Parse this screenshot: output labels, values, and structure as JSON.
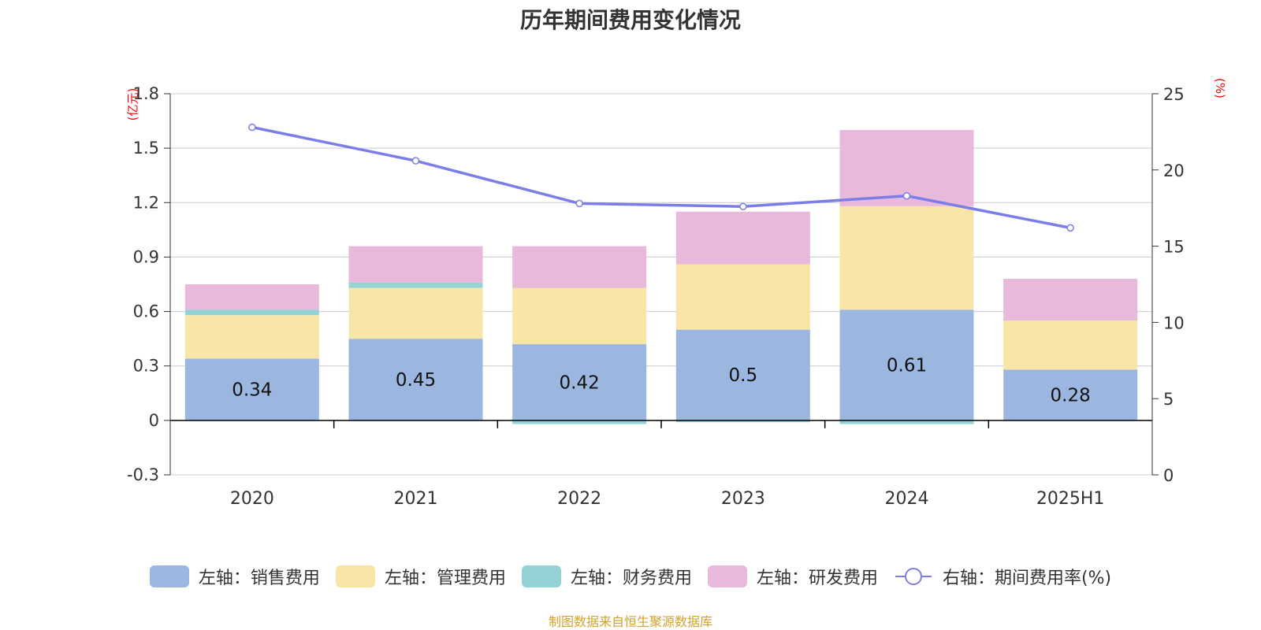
{
  "chart_data": {
    "type": "bar",
    "title": "历年期间费用变化情况",
    "categories": [
      "2020",
      "2021",
      "2022",
      "2023",
      "2024",
      "2025H1"
    ],
    "left_axis": {
      "unit": "(亿元)",
      "ticks": [
        "-0.3",
        "0",
        "0.3",
        "0.6",
        "0.9",
        "1.2",
        "1.5",
        "1.8"
      ],
      "ylim": [
        -0.3,
        1.8
      ]
    },
    "right_axis": {
      "unit": "(%)",
      "ticks": [
        "0",
        "5",
        "10",
        "15",
        "20",
        "25"
      ],
      "ylim": [
        0,
        25
      ]
    },
    "series": [
      {
        "name": "左轴：销售费用",
        "type": "bar",
        "axis": "left",
        "color": "#9bb7e0",
        "values": [
          0.34,
          0.45,
          0.42,
          0.5,
          0.61,
          0.28
        ],
        "labels": [
          "0.34",
          "0.45",
          "0.42",
          "0.5",
          "0.61",
          "0.28"
        ]
      },
      {
        "name": "左轴：管理费用",
        "type": "bar",
        "axis": "left",
        "color": "#f8e6a8",
        "values": [
          0.24,
          0.28,
          0.31,
          0.36,
          0.57,
          0.27
        ]
      },
      {
        "name": "左轴：财务费用",
        "type": "bar",
        "axis": "left",
        "color": "#94d3d5",
        "values": [
          0.03,
          0.03,
          -0.02,
          -0.01,
          -0.02,
          0.0
        ]
      },
      {
        "name": "左轴：研发费用",
        "type": "bar",
        "axis": "left",
        "color": "#e8b9da",
        "values": [
          0.14,
          0.2,
          0.23,
          0.29,
          0.42,
          0.23
        ]
      },
      {
        "name": "右轴：期间费用率(%)",
        "type": "line",
        "axis": "right",
        "color": "#7b7de8",
        "values": [
          22.8,
          20.6,
          17.8,
          17.6,
          18.3,
          16.2
        ]
      }
    ],
    "grid": true,
    "legend_position": "bottom"
  },
  "source_note": "制图数据来自恒生聚源数据库"
}
